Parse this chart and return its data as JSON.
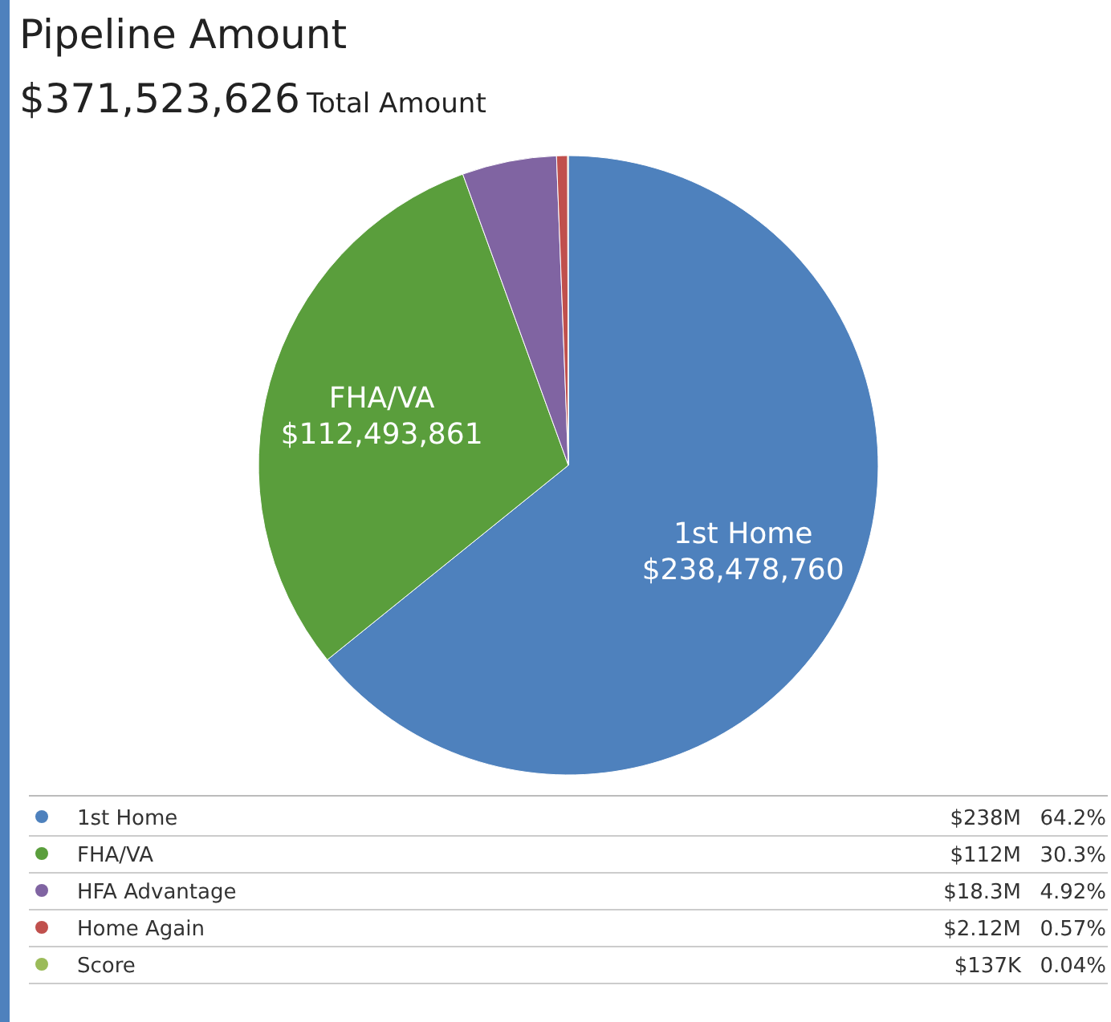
{
  "chart_data": {
    "type": "pie",
    "title": "Pipeline Amount",
    "subtitle": "$371,523,626",
    "categories": [
      "1st Home",
      "FHA/VA",
      "HFA Advantage",
      "Home Again",
      "Score"
    ],
    "values": [
      238478760,
      112493861,
      18300000,
      2120000,
      137000
    ],
    "colors": [
      "#4e81bd",
      "#5a9e3c",
      "#8064a2",
      "#c0504d",
      "#9bbb59"
    ],
    "value_labels": [
      "$238,478,760",
      "$112,493,861",
      null,
      null,
      null
    ],
    "annotations": [
      "Total Amount",
      "$238M",
      "64.2%",
      "$112M",
      "30.3%",
      "$18.3M",
      "4.92%",
      "$2.12M",
      "0.57%",
      "$137K",
      "0.04%"
    ],
    "legend": "bottom"
  }
}
